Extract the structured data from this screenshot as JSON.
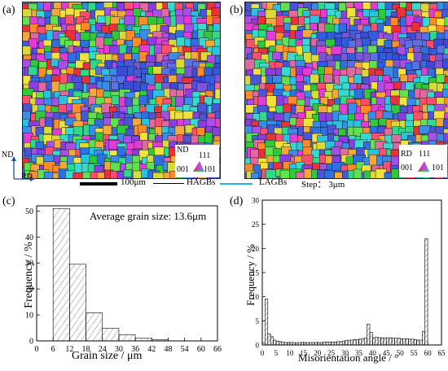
{
  "panels": {
    "a": "(a)",
    "b": "(b)",
    "c": "(c)",
    "d": "(d)"
  },
  "ebsd_maps": {
    "a": {
      "axis_vertical": "ND",
      "axis_horizontal": "RD",
      "key_ref": "ND",
      "key_111": "111",
      "key_001": "001",
      "key_101": "101"
    },
    "b": {
      "key_ref": "RD",
      "key_111": "111",
      "key_001": "001",
      "key_101": "101"
    }
  },
  "map_legend": {
    "scale_bar": "100μm",
    "hagbs": "HAGBs",
    "lagbs": "LAGBs",
    "step": "Step： 3μm"
  },
  "colors": {
    "hagb_line": "#000000",
    "lagb_line": "#22b4e6",
    "bar_fill": "#ffffff"
  },
  "chart_data": [
    {
      "type": "bar",
      "annotation": "Average grain size: 13.6μm",
      "xlabel": "Grain size / μm",
      "ylabel": "Frequency / %",
      "xlim": [
        0,
        66
      ],
      "ylim": [
        0,
        52
      ],
      "xticks": [
        0,
        6,
        12,
        18,
        24,
        30,
        36,
        42,
        48,
        54,
        60,
        66
      ],
      "yticks": [
        0,
        10,
        20,
        30,
        40,
        50
      ],
      "bin_width": 6,
      "x": [
        6,
        12,
        18,
        24,
        30,
        36,
        42
      ],
      "values": [
        51,
        29.5,
        10.8,
        4.8,
        2.4,
        1.0,
        0.4
      ],
      "grid": false
    },
    {
      "type": "bar",
      "xlabel": "Misorientation angle / °",
      "ylabel": "Frequency / %",
      "xlim": [
        0,
        65
      ],
      "ylim": [
        0,
        30
      ],
      "xticks": [
        0,
        5,
        10,
        15,
        20,
        25,
        30,
        35,
        40,
        45,
        50,
        55,
        60,
        65
      ],
      "yticks": [
        0,
        5,
        10,
        15,
        20,
        25,
        30
      ],
      "bin_width": 1,
      "x": [
        0,
        1,
        2,
        3,
        4,
        5,
        6,
        7,
        8,
        9,
        10,
        11,
        12,
        13,
        14,
        15,
        16,
        17,
        18,
        19,
        20,
        21,
        22,
        23,
        24,
        25,
        26,
        27,
        28,
        29,
        30,
        31,
        32,
        33,
        34,
        35,
        36,
        37,
        38,
        39,
        40,
        41,
        42,
        43,
        44,
        45,
        46,
        47,
        48,
        49,
        50,
        51,
        52,
        53,
        54,
        55,
        56,
        57,
        58,
        59
      ],
      "values": [
        0.4,
        9.5,
        2.3,
        1.7,
        1.0,
        0.8,
        0.7,
        0.6,
        0.5,
        0.5,
        0.5,
        0.5,
        0.4,
        0.5,
        0.5,
        0.5,
        0.5,
        0.5,
        0.5,
        0.5,
        0.5,
        0.5,
        0.6,
        0.6,
        0.6,
        0.6,
        0.6,
        0.7,
        0.7,
        0.8,
        0.9,
        1.0,
        1.0,
        1.1,
        1.1,
        1.2,
        1.3,
        1.4,
        4.3,
        2.6,
        1.5,
        1.6,
        1.5,
        1.5,
        1.4,
        1.5,
        1.5,
        1.4,
        1.4,
        1.4,
        1.3,
        1.3,
        1.3,
        1.2,
        1.2,
        1.1,
        1.0,
        1.0,
        2.8,
        22
      ],
      "grid": false
    }
  ]
}
